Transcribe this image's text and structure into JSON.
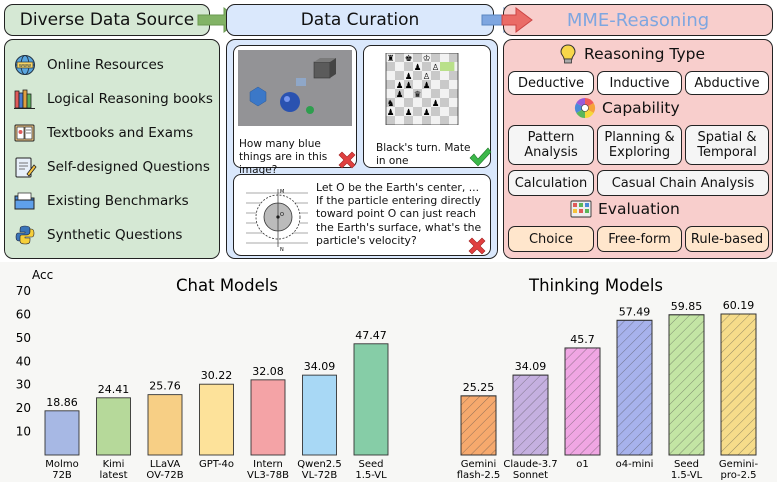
{
  "headers": {
    "diverse": "Diverse Data Source",
    "curation": "Data Curation",
    "mme": "MME-Reasoning"
  },
  "sources": [
    {
      "label": "Online Resources",
      "icon": "globe-icon"
    },
    {
      "label": "Logical Reasoning books",
      "icon": "books-icon"
    },
    {
      "label": "Textbooks and Exams",
      "icon": "exam-icon"
    },
    {
      "label": "Self-designed Questions",
      "icon": "notepad-icon"
    },
    {
      "label": "Existing Benchmarks",
      "icon": "folder-icon"
    },
    {
      "label": "Synthetic Questions",
      "icon": "python-icon"
    }
  ],
  "curation": {
    "q1": "How many blue things are in this image?",
    "q2": "Black's turn. Mate in one",
    "q3": "Let O be the Earth's center, ... If the particle entering directly toward point O can just reach the Earth's surface, what's the particle's velocity?",
    "q1_mark": "cross",
    "q2_mark": "check",
    "q3_mark": "cross"
  },
  "reasoning": {
    "type_title": "Reasoning Type",
    "types": [
      "Deductive",
      "Inductive",
      "Abductive"
    ],
    "capability_title": "Capability",
    "capabilities": [
      "Pattern Analysis",
      "Planning & Exploring",
      "Spatial & Temporal",
      "Calculation",
      "Casual Chain Analysis"
    ],
    "evaluation_title": "Evaluation",
    "evaluations": [
      "Choice",
      "Free-form",
      "Rule-based"
    ]
  },
  "colors": {
    "green_panel": "#d5e8d4",
    "green_border_header": "#d5e8d4",
    "blue_panel": "#dae8fc",
    "red_panel": "#f8cecc",
    "red_tag": "#f5f5f5",
    "orange_tag": "#ffe6cc",
    "arrow_green": "#82b366",
    "arrow_blue": "#7ea6e0",
    "arrow_pink": "#ea6b66",
    "mme_title": "#7ea6e0"
  },
  "chart_data": {
    "type": "bar",
    "ylabel": "Acc",
    "ylim": [
      0,
      70
    ],
    "yticks": [
      10,
      20,
      30,
      40,
      50,
      60,
      70
    ],
    "groups": [
      {
        "title": "Chat Models",
        "categories": [
          "Molmo 72B",
          "Kimi latest",
          "LLaVA OV-72B",
          "GPT-4o",
          "Intern VL3-78B",
          "Qwen2.5 VL-72B",
          "Seed 1.5-VL"
        ],
        "tick_lines": [
          [
            "Molmo",
            "72B"
          ],
          [
            "Kimi",
            "latest"
          ],
          [
            "LLaVA",
            "OV-72B"
          ],
          [
            "GPT-4o"
          ],
          [
            "Intern",
            "VL3-78B"
          ],
          [
            "Qwen2.5",
            "VL-72B"
          ],
          [
            "Seed",
            "1.5-VL"
          ]
        ],
        "values": [
          18.86,
          24.41,
          25.76,
          30.22,
          32.08,
          34.09,
          47.47
        ],
        "labels": [
          "18.86",
          "24.41",
          "25.76",
          "30.22",
          "32.08",
          "34.09",
          "47.47"
        ],
        "colors": [
          "#a7b8e4",
          "#b6d99a",
          "#f7cf85",
          "#fde29a",
          "#f4a3a6",
          "#a8d8f5",
          "#86cda7"
        ]
      },
      {
        "title": "Thinking Models",
        "categories": [
          "Gemini flash-2.5",
          "Claude-3.7 Sonnet",
          "o1",
          "o4-mini",
          "Seed 1.5-VL",
          "Gemini-pro-2.5"
        ],
        "tick_lines": [
          [
            "Gemini",
            "flash-2.5"
          ],
          [
            "Claude-3.7",
            "Sonnet"
          ],
          [
            "o1"
          ],
          [
            "o4-mini"
          ],
          [
            "Seed",
            "1.5-VL"
          ],
          [
            "Gemini-",
            "pro-2.5"
          ]
        ],
        "values": [
          25.25,
          34.09,
          45.7,
          57.49,
          59.85,
          60.19
        ],
        "labels": [
          "25.25",
          "34.09",
          "45.7",
          "57.49",
          "59.85",
          "60.19"
        ],
        "colors": [
          "#f6a96d",
          "#c5b0e0",
          "#f0a6e3",
          "#a7b2ec",
          "#c3e5a4",
          "#f6dc8a"
        ]
      }
    ]
  }
}
